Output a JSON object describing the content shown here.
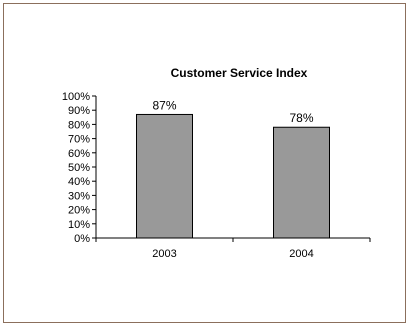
{
  "chart_data": {
    "type": "bar",
    "title": "Customer Service Index",
    "categories": [
      "2003",
      "2004"
    ],
    "values": [
      87,
      78
    ],
    "data_labels": [
      "87%",
      "78%"
    ],
    "ylim": [
      0,
      100
    ],
    "y_ticks": [
      "0%",
      "10%",
      "20%",
      "30%",
      "40%",
      "50%",
      "60%",
      "70%",
      "80%",
      "90%",
      "100%"
    ],
    "bar_color": "#999999",
    "grid": false,
    "legend": "none"
  }
}
